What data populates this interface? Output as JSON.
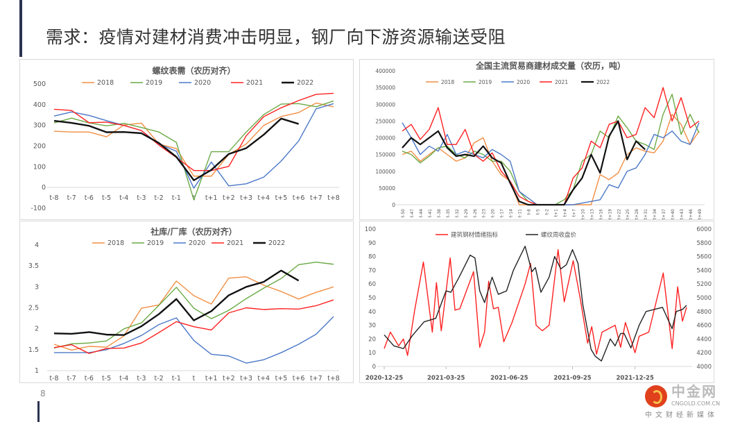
{
  "slide": {
    "title": "需求：疫情对建材消费冲击明显，钢厂向下游资源输送受阻",
    "page_number": "8"
  },
  "watermark": {
    "brand": "中金网",
    "url": "CNGOLD.COM.CN",
    "tagline": "中文财经新媒体"
  },
  "colors": {
    "2018": "#f28e43",
    "2019": "#6aaa45",
    "2020": "#4a78c8",
    "2021": "#ff2020",
    "2022": "#111111"
  },
  "chart_data": [
    {
      "id": "rebar-demand",
      "type": "line",
      "title": "螺纹表需（农历对齐）",
      "categories": [
        "t-8",
        "t-7",
        "t-6",
        "t-5",
        "t-4",
        "t-3",
        "t-2",
        "t-1",
        "t",
        "t+1",
        "t+2",
        "t+3",
        "t+4",
        "t+5",
        "t+6",
        "t+7",
        "t+8"
      ],
      "ylim": [
        -100,
        500
      ],
      "yticks": [
        -100,
        0,
        100,
        200,
        300,
        400,
        500
      ],
      "legend": "top",
      "grid": false,
      "series": [
        {
          "name": "2018",
          "color": "#f28e43",
          "values": [
            272,
            268,
            268,
            245,
            302,
            311,
            210,
            188,
            55,
            55,
            160,
            210,
            300,
            343,
            362,
            408,
            390
          ]
        },
        {
          "name": "2019",
          "color": "#6aaa45",
          "values": [
            312,
            335,
            312,
            298,
            310,
            290,
            268,
            218,
            -60,
            173,
            173,
            268,
            352,
            403,
            405,
            390,
            418
          ]
        },
        {
          "name": "2020",
          "color": "#4a78c8",
          "values": [
            345,
            365,
            348,
            323,
            300,
            275,
            210,
            175,
            -3,
            123,
            8,
            18,
            50,
            128,
            225,
            380,
            405
          ]
        },
        {
          "name": "2021",
          "color": "#ff2020",
          "values": [
            378,
            372,
            313,
            316,
            300,
            275,
            205,
            145,
            82,
            82,
            102,
            250,
            342,
            385,
            420,
            450,
            455
          ]
        },
        {
          "name": "2022",
          "color": "#111111",
          "width": 2.4,
          "values": [
            322,
            312,
            298,
            267,
            268,
            262,
            215,
            148,
            35,
            85,
            162,
            190,
            255,
            333,
            307,
            null,
            null
          ]
        }
      ]
    },
    {
      "id": "social-factory-inventory",
      "type": "line",
      "title": "社库/厂库（农历对齐）",
      "categories": [
        "t-8",
        "t-7",
        "t-6",
        "t-5",
        "t-4",
        "t-3",
        "t-2",
        "t-1",
        "t",
        "t+1",
        "t+2",
        "t+3",
        "t+4",
        "t+5",
        "t+6",
        "t+7",
        "t+8"
      ],
      "ylim": [
        1,
        4
      ],
      "yticks": [
        1,
        1.5,
        2,
        2.5,
        3,
        3.5,
        4
      ],
      "legend": "top",
      "grid": false,
      "series": [
        {
          "name": "2018",
          "color": "#f28e43",
          "values": [
            1.63,
            1.49,
            1.58,
            1.56,
            1.83,
            2.49,
            2.57,
            3.14,
            2.79,
            2.59,
            3.21,
            3.24,
            3.04,
            2.89,
            2.71,
            2.87,
            3.0
          ]
        },
        {
          "name": "2019",
          "color": "#6aaa45",
          "values": [
            1.54,
            1.64,
            1.66,
            1.71,
            2.0,
            2.14,
            2.56,
            2.99,
            2.49,
            2.24,
            2.44,
            2.72,
            2.97,
            3.2,
            3.53,
            3.59,
            3.54
          ]
        },
        {
          "name": "2020",
          "color": "#4a78c8",
          "values": [
            1.43,
            1.43,
            1.43,
            1.5,
            1.65,
            1.84,
            2.1,
            2.26,
            1.72,
            1.39,
            1.35,
            1.18,
            1.26,
            1.43,
            1.63,
            1.87,
            2.29
          ]
        },
        {
          "name": "2021",
          "color": "#ff2020",
          "values": [
            1.55,
            1.62,
            1.41,
            1.53,
            1.54,
            1.66,
            1.91,
            2.17,
            2.05,
            1.97,
            2.38,
            2.5,
            2.46,
            2.48,
            2.47,
            2.55,
            2.69
          ]
        },
        {
          "name": "2022",
          "color": "#111111",
          "width": 2.4,
          "values": [
            1.89,
            1.88,
            1.92,
            1.86,
            1.85,
            2.06,
            2.35,
            2.71,
            2.2,
            2.42,
            2.8,
            3.0,
            3.12,
            3.39,
            3.15,
            null,
            null
          ]
        }
      ]
    },
    {
      "id": "trader-volume",
      "type": "line",
      "title": "全国主流贸易商建材成交量（农历，吨）",
      "x": [
        -50,
        -47,
        -44,
        -41,
        -38,
        -35,
        -32,
        -29,
        -26,
        -23,
        -20,
        -17,
        -14,
        -11,
        -8,
        -5,
        -2,
        1,
        4,
        7,
        10,
        13,
        16,
        19,
        22,
        25,
        28,
        31,
        34,
        37,
        40,
        43,
        46,
        49
      ],
      "xticklabels": [
        "t-50",
        "t-47",
        "t-44",
        "t-41",
        "t-38",
        "t-35",
        "t-32",
        "t-29",
        "t-26",
        "t-23",
        "t-20",
        "t-17",
        "t-14",
        "t-11",
        "t-8",
        "t-5",
        "t-2",
        "t+1",
        "t+4",
        "t+7",
        "t+10",
        "t+13",
        "t+16",
        "t+19",
        "t+22",
        "t+25",
        "t+28",
        "t+31",
        "t+34",
        "t+37",
        "t+40",
        "t+43",
        "t+46",
        "t+49"
      ],
      "ylim": [
        0,
        400000
      ],
      "yticks": [
        0,
        50000,
        100000,
        150000,
        200000,
        250000,
        300000,
        350000,
        400000
      ],
      "legend": "top",
      "grid": false,
      "series": [
        {
          "name": "2018",
          "color": "#f28e43",
          "values": [
            150000,
            160000,
            130000,
            150000,
            170000,
            150000,
            130000,
            140000,
            185000,
            200000,
            130000,
            90000,
            70000,
            0,
            0,
            0,
            0,
            0,
            0,
            0,
            0,
            0,
            90000,
            75000,
            95000,
            150000,
            170000,
            160000,
            155000,
            190000,
            270000,
            240000,
            180000,
            220000
          ]
        },
        {
          "name": "2019",
          "color": "#6aaa45",
          "values": [
            160000,
            150000,
            125000,
            145000,
            170000,
            175000,
            150000,
            140000,
            160000,
            150000,
            130000,
            130000,
            100000,
            40000,
            10000,
            0,
            0,
            0,
            15000,
            45000,
            130000,
            150000,
            220000,
            200000,
            265000,
            230000,
            190000,
            180000,
            165000,
            270000,
            330000,
            210000,
            270000,
            215000
          ]
        },
        {
          "name": "2020",
          "color": "#4a78c8",
          "values": [
            245000,
            200000,
            150000,
            175000,
            160000,
            210000,
            150000,
            160000,
            150000,
            140000,
            165000,
            150000,
            130000,
            40000,
            20000,
            0,
            0,
            0,
            0,
            0,
            5000,
            10000,
            15000,
            60000,
            50000,
            100000,
            110000,
            150000,
            210000,
            200000,
            220000,
            190000,
            180000,
            245000
          ]
        },
        {
          "name": "2021",
          "color": "#ff2020",
          "values": [
            220000,
            240000,
            195000,
            225000,
            290000,
            180000,
            180000,
            225000,
            150000,
            130000,
            155000,
            100000,
            70000,
            25000,
            10000,
            0,
            0,
            0,
            0,
            80000,
            110000,
            190000,
            170000,
            240000,
            250000,
            200000,
            210000,
            290000,
            260000,
            350000,
            250000,
            320000,
            230000,
            250000
          ]
        },
        {
          "name": "2022",
          "color": "#111111",
          "width": 2.2,
          "values": [
            170000,
            200000,
            180000,
            200000,
            220000,
            170000,
            145000,
            150000,
            145000,
            175000,
            140000,
            125000,
            65000,
            10000,
            0,
            0,
            0,
            0,
            0,
            45000,
            80000,
            150000,
            95000,
            205000,
            250000,
            135000,
            190000,
            165000,
            null,
            null,
            null,
            null,
            null,
            null
          ]
        }
      ]
    },
    {
      "id": "sentiment-vs-price",
      "type": "line",
      "xtype": "date",
      "xlim": [
        "2020-12-25",
        "2022-03-10"
      ],
      "xticklabels": [
        "2020-12-25",
        "2021-03-25",
        "2021-06-25",
        "2021-09-25",
        "2021-12-25"
      ],
      "ylim": [
        0,
        100
      ],
      "yticks": [
        0,
        10,
        20,
        30,
        40,
        50,
        60,
        70,
        80,
        90,
        100
      ],
      "y2lim": [
        4000,
        6000
      ],
      "y2ticks": [
        4000,
        4200,
        4400,
        4600,
        4800,
        5000,
        5200,
        5400,
        5600,
        5800,
        6000
      ],
      "legend": "top",
      "grid": false,
      "series": [
        {
          "name": "建筑钢材情绪指标",
          "color": "#ff2020",
          "axis": "left",
          "points": [
            [
              "2020-12-25",
              13
            ],
            [
              "2021-01-03",
              25
            ],
            [
              "2021-01-15",
              15
            ],
            [
              "2021-01-22",
              20
            ],
            [
              "2021-01-28",
              8
            ],
            [
              "2021-02-07",
              40
            ],
            [
              "2021-02-20",
              76
            ],
            [
              "2021-03-05",
              25
            ],
            [
              "2021-03-11",
              61
            ],
            [
              "2021-03-18",
              26
            ],
            [
              "2021-03-31",
              79
            ],
            [
              "2021-04-07",
              41
            ],
            [
              "2021-04-14",
              42
            ],
            [
              "2021-05-04",
              69
            ],
            [
              "2021-05-13",
              14
            ],
            [
              "2021-05-20",
              25
            ],
            [
              "2021-05-26",
              62
            ],
            [
              "2021-06-02",
              42
            ],
            [
              "2021-06-09",
              43
            ],
            [
              "2021-06-17",
              18
            ],
            [
              "2021-06-29",
              32
            ],
            [
              "2021-07-18",
              60
            ],
            [
              "2021-07-26",
              75
            ],
            [
              "2021-08-03",
              30
            ],
            [
              "2021-08-12",
              26
            ],
            [
              "2021-08-22",
              30
            ],
            [
              "2021-09-04",
              85
            ],
            [
              "2021-09-13",
              47
            ],
            [
              "2021-09-26",
              77
            ],
            [
              "2021-10-06",
              50
            ],
            [
              "2021-10-17",
              17
            ],
            [
              "2021-10-23",
              29
            ],
            [
              "2021-10-30",
              9
            ],
            [
              "2021-11-07",
              25
            ],
            [
              "2021-11-26",
              30
            ],
            [
              "2021-12-04",
              14
            ],
            [
              "2021-12-11",
              32
            ],
            [
              "2021-12-25",
              10
            ],
            [
              "2021-12-31",
              22
            ],
            [
              "2022-01-14",
              25
            ],
            [
              "2022-02-04",
              68
            ],
            [
              "2022-02-17",
              13
            ],
            [
              "2022-02-25",
              58
            ],
            [
              "2022-03-04",
              33
            ],
            [
              "2022-03-10",
              43
            ]
          ]
        },
        {
          "name": "螺纹周收盘价",
          "color": "#222222",
          "axis": "right",
          "points": [
            [
              "2020-12-25",
              4460
            ],
            [
              "2021-01-08",
              4300
            ],
            [
              "2021-01-22",
              4260
            ],
            [
              "2021-02-04",
              4450
            ],
            [
              "2021-02-21",
              4650
            ],
            [
              "2021-03-10",
              4700
            ],
            [
              "2021-03-25",
              5100
            ],
            [
              "2021-04-01",
              5080
            ],
            [
              "2021-04-13",
              5300
            ],
            [
              "2021-04-29",
              5620
            ],
            [
              "2021-05-06",
              5580
            ],
            [
              "2021-05-13",
              5100
            ],
            [
              "2021-05-20",
              4930
            ],
            [
              "2021-05-31",
              5300
            ],
            [
              "2021-06-09",
              5050
            ],
            [
              "2021-06-21",
              5100
            ],
            [
              "2021-07-01",
              5400
            ],
            [
              "2021-07-18",
              5750
            ],
            [
              "2021-07-28",
              5380
            ],
            [
              "2021-08-02",
              5440
            ],
            [
              "2021-08-10",
              5080
            ],
            [
              "2021-08-22",
              5300
            ],
            [
              "2021-08-30",
              5600
            ],
            [
              "2021-09-08",
              5420
            ],
            [
              "2021-09-16",
              5480
            ],
            [
              "2021-09-25",
              5700
            ],
            [
              "2021-10-03",
              5500
            ],
            [
              "2021-10-10",
              4900
            ],
            [
              "2021-10-22",
              4250
            ],
            [
              "2021-10-28",
              4150
            ],
            [
              "2021-11-06",
              4080
            ],
            [
              "2021-11-19",
              4400
            ],
            [
              "2021-11-26",
              4300
            ],
            [
              "2021-12-04",
              4480
            ],
            [
              "2021-12-09",
              4480
            ],
            [
              "2021-12-19",
              4270
            ],
            [
              "2021-12-31",
              4600
            ],
            [
              "2022-01-10",
              4800
            ],
            [
              "2022-02-03",
              4860
            ],
            [
              "2022-02-17",
              4550
            ],
            [
              "2022-02-23",
              4800
            ],
            [
              "2022-03-04",
              4830
            ],
            [
              "2022-03-10",
              4890
            ]
          ]
        }
      ]
    }
  ]
}
